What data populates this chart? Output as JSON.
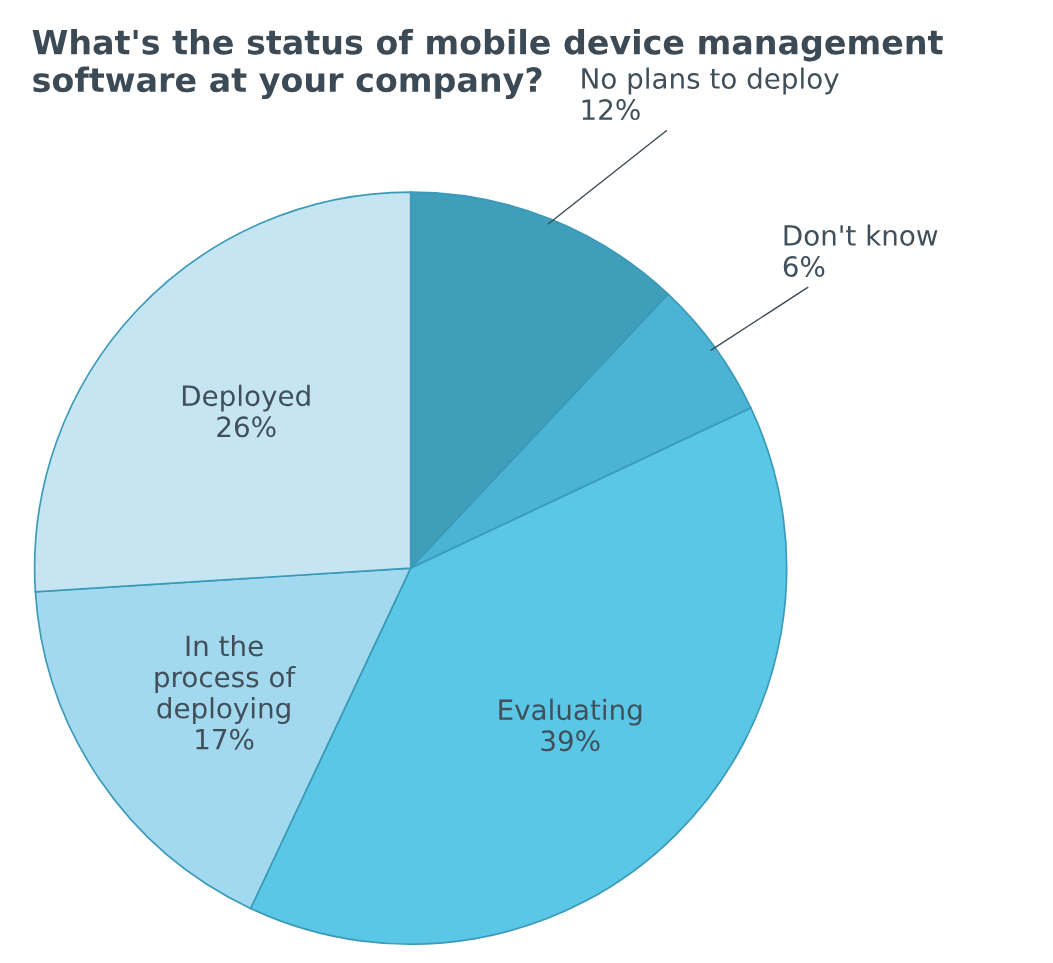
{
  "chart_data": {
    "type": "pie",
    "title": "What's the status of mobile device management software at your company?",
    "categories": [
      "No plans to deploy",
      "Don't know",
      "Evaluating",
      "In the\nprocess of\ndeploying",
      "Deployed"
    ],
    "values": [
      12,
      6,
      39,
      17,
      26
    ],
    "value_labels": [
      "12%",
      "6%",
      "39%",
      "17%",
      "26%"
    ],
    "colors": [
      "#3f9fba",
      "#4bb3d3",
      "#5bc7e6",
      "#a3d9ee",
      "#c5e5f3"
    ],
    "legend": false
  }
}
